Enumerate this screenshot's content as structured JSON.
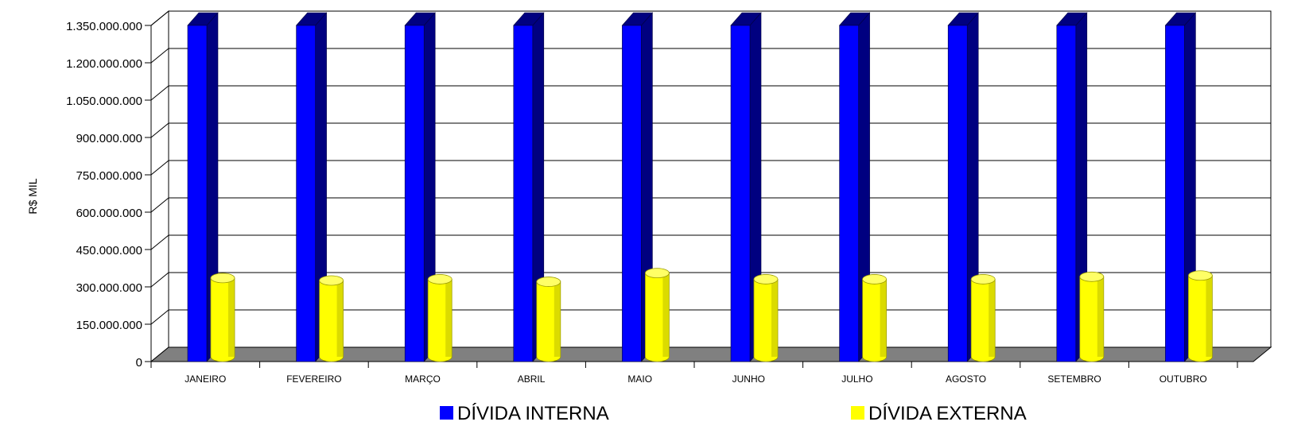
{
  "chart_data": {
    "type": "bar",
    "ylabel": "R$ MIL",
    "ylim": [
      0,
      1350000000
    ],
    "yticks": [
      {
        "value": 0,
        "label": "0"
      },
      {
        "value": 150000000,
        "label": "150.000.000"
      },
      {
        "value": 300000000,
        "label": "300.000.000"
      },
      {
        "value": 450000000,
        "label": "450.000.000"
      },
      {
        "value": 600000000,
        "label": "600.000.000"
      },
      {
        "value": 750000000,
        "label": "750.000.000"
      },
      {
        "value": 900000000,
        "label": "900.000.000"
      },
      {
        "value": 1050000000,
        "label": "1.050.000.000"
      },
      {
        "value": 1200000000,
        "label": "1.200.000.000"
      },
      {
        "value": 1350000000,
        "label": "1.350.000.000"
      }
    ],
    "grid": true,
    "legend_position": "bottom",
    "categories": [
      "JANEIRO",
      "FEVEREIRO",
      "MARÇO",
      "ABRIL",
      "MAIO",
      "JUNHO",
      "JULHO",
      "AGOSTO",
      "SETEMBRO",
      "OUTUBRO"
    ],
    "series": [
      {
        "name": "DÍVIDA INTERNA",
        "color": "#0000FF",
        "side_color": "#000080",
        "shape": "box",
        "values": [
          1350000000,
          1350000000,
          1350000000,
          1350000000,
          1350000000,
          1350000000,
          1350000000,
          1350000000,
          1350000000,
          1350000000
        ]
      },
      {
        "name": "DÍVIDA EXTERNA",
        "color": "#FFFF00",
        "side_color": "#BDBD00",
        "shape": "cylinder",
        "values": [
          310000000,
          300000000,
          305000000,
          295000000,
          330000000,
          305000000,
          305000000,
          305000000,
          315000000,
          320000000
        ]
      }
    ]
  }
}
